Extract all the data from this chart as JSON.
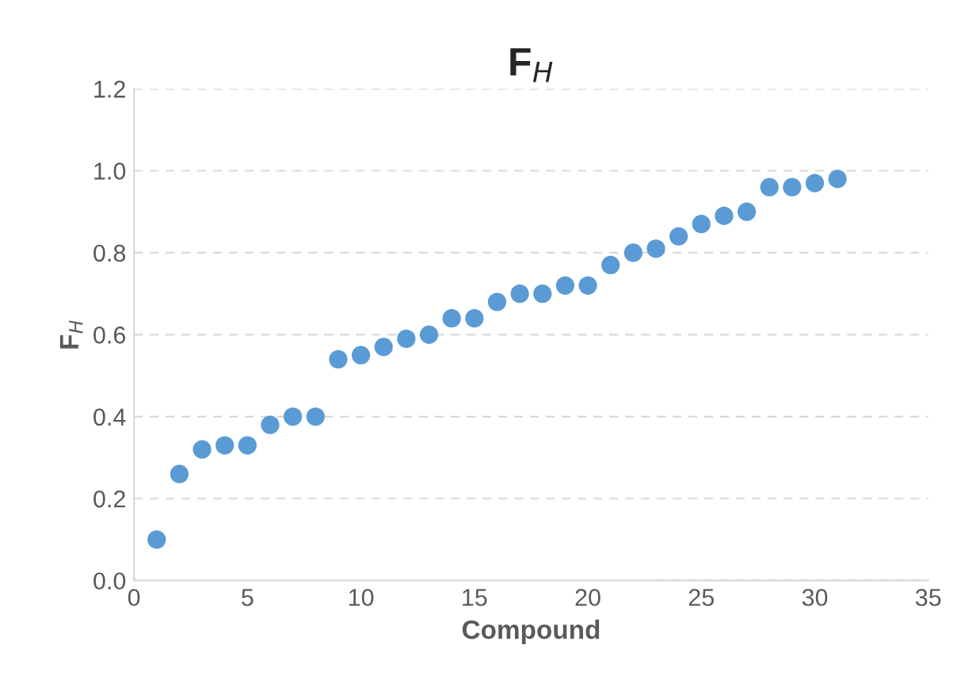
{
  "chart_data": {
    "type": "scatter",
    "title": "F$_{H}$",
    "xlabel": "Compound",
    "ylabel": "F$_{H}$",
    "x": [
      1,
      2,
      3,
      4,
      5,
      6,
      7,
      8,
      9,
      10,
      11,
      12,
      13,
      14,
      15,
      16,
      17,
      18,
      19,
      20,
      21,
      22,
      23,
      24,
      25,
      26,
      27,
      28,
      29,
      30,
      31
    ],
    "series": [
      {
        "color": "#5b9bd5",
        "values": [
          0.1,
          0.26,
          0.32,
          0.33,
          0.33,
          0.38,
          0.4,
          0.4,
          0.54,
          0.55,
          0.57,
          0.59,
          0.6,
          0.64,
          0.64,
          0.68,
          0.7,
          0.7,
          0.72,
          0.72,
          0.77,
          0.8,
          0.81,
          0.84,
          0.87,
          0.89,
          0.9,
          0.96,
          0.96,
          0.97,
          0.98
        ]
      }
    ],
    "xlim": [
      0,
      35
    ],
    "xticks": [
      0,
      5,
      10,
      15,
      20,
      25,
      30,
      35
    ],
    "ylim": [
      0,
      1.2
    ],
    "yticks": [
      {
        "value": 0,
        "label": "0.0"
      },
      {
        "value": 0.2,
        "label": "0.2"
      },
      {
        "value": 0.4,
        "label": "0.4"
      },
      {
        "value": 0.6,
        "label": "0.6"
      },
      {
        "value": 0.8,
        "label": "0.8"
      },
      {
        "value": 1.0,
        "label": "1.0"
      },
      {
        "value": 1.2,
        "label": "1.2"
      }
    ],
    "grid": "y",
    "marker": "circle",
    "legend": false
  }
}
